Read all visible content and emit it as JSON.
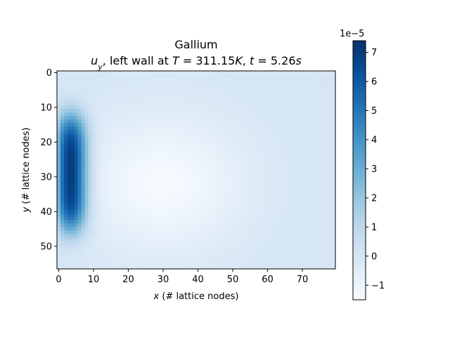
{
  "chart_data": {
    "type": "heatmap",
    "title": "Gallium",
    "subtitle": {
      "parts": [
        {
          "text": "u",
          "italic": true
        },
        {
          "text": "y",
          "italic": true,
          "sub": true
        },
        {
          "text": ", left wall at ",
          "italic": false
        },
        {
          "text": "T",
          "italic": true
        },
        {
          "text": " = 311.15",
          "italic": false
        },
        {
          "text": "K",
          "italic": true
        },
        {
          "text": ", ",
          "italic": false
        },
        {
          "text": "t",
          "italic": true
        },
        {
          "text": " = 5.26",
          "italic": false
        },
        {
          "text": "s",
          "italic": true
        }
      ]
    },
    "xlabel": {
      "var": "x",
      "rest": " (# lattice nodes)"
    },
    "ylabel": {
      "var": "y",
      "rest": " (# lattice nodes)"
    },
    "xlim": [
      -0.5,
      79.5
    ],
    "ylim": [
      56.5,
      -0.5
    ],
    "y_inverted": true,
    "xticks": [
      0,
      10,
      20,
      30,
      40,
      50,
      60,
      70
    ],
    "yticks": [
      0,
      10,
      20,
      30,
      40,
      50
    ],
    "grid_size": {
      "nx": 80,
      "ny": 57
    },
    "colormap": "Blues",
    "colorbar": {
      "vmin": -1.5e-05,
      "vmax": 7.4e-05,
      "ticks": [
        -1,
        0,
        1,
        2,
        3,
        4,
        5,
        6,
        7
      ],
      "tick_labels": [
        "−1",
        "0",
        "1",
        "2",
        "3",
        "4",
        "5",
        "6",
        "7"
      ],
      "offset_text": "1e−5"
    },
    "field_description": {
      "peak_value": 7.4e-05,
      "peak_location": {
        "x": 3.5,
        "y": 29
      },
      "min_value": -1.4e-05,
      "min_location": {
        "x": 30,
        "y": 32
      }
    }
  },
  "colors": {
    "cmap_stops": [
      "#f7fbff",
      "#deebf7",
      "#c6dbef",
      "#9ecae1",
      "#6baed6",
      "#4292c6",
      "#2171b5",
      "#08519c",
      "#08306b"
    ]
  }
}
